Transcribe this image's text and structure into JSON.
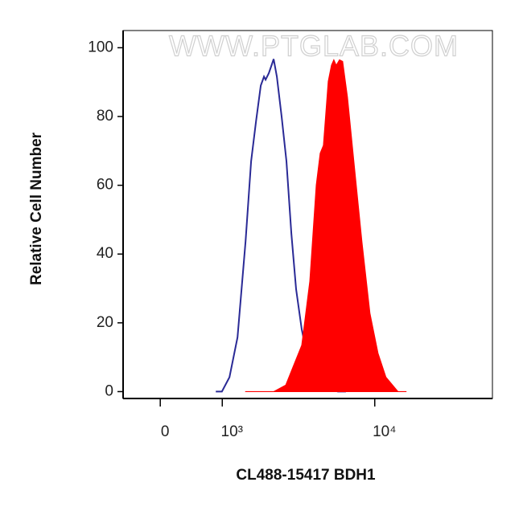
{
  "chart_data": {
    "type": "histogram-overlay",
    "watermark": "WWW.PTGLAB.COM",
    "xlabel": "CL488-15417 BDH1",
    "ylabel": "Relative Cell Number",
    "x_log_offset": 1000,
    "xlim": [
      -340,
      40000
    ],
    "xticks": [
      0,
      {
        "value": 1000,
        "label": "10³"
      },
      {
        "value": 10000,
        "label": "10⁴"
      }
    ],
    "ylim": [
      -2,
      105
    ],
    "yticks": [
      0,
      20,
      40,
      60,
      80,
      100
    ],
    "series": [
      {
        "color": "#2a2a96",
        "filled": false,
        "x": [
          861,
          992,
          1168,
          1372,
          1594,
          1762,
          1916,
          2076,
          2190,
          2246,
          2366,
          2490,
          2552,
          2682,
          2886,
          3100,
          3328,
          3566,
          3862,
          4320,
          5086,
          6282,
          6966
        ],
        "values": [
          0,
          0,
          4.2,
          15.8,
          43.7,
          67,
          78.6,
          89,
          91.6,
          90.7,
          92.6,
          95.3,
          96.7,
          91.6,
          79.8,
          67,
          46,
          29.8,
          18.1,
          6.5,
          1.4,
          0,
          0
        ]
      },
      {
        "color": "#ff0000",
        "filled": true,
        "x": [
          1594,
          1968,
          2552,
          3064,
          3446,
          3862,
          4320,
          4716,
          4976,
          5194,
          5364,
          5538,
          5776,
          5962,
          6152,
          6414,
          6684,
          7110,
          7712,
          8532,
          9428,
          10404,
          11474,
          13274,
          14614
        ],
        "values": [
          0,
          0,
          0,
          1.9,
          7.7,
          13.5,
          32.1,
          60,
          69.3,
          71.6,
          80.9,
          90.2,
          94.9,
          96.5,
          94.9,
          96.5,
          96,
          85.6,
          67,
          43.7,
          22.8,
          11.2,
          4.2,
          0,
          0
        ]
      }
    ]
  }
}
